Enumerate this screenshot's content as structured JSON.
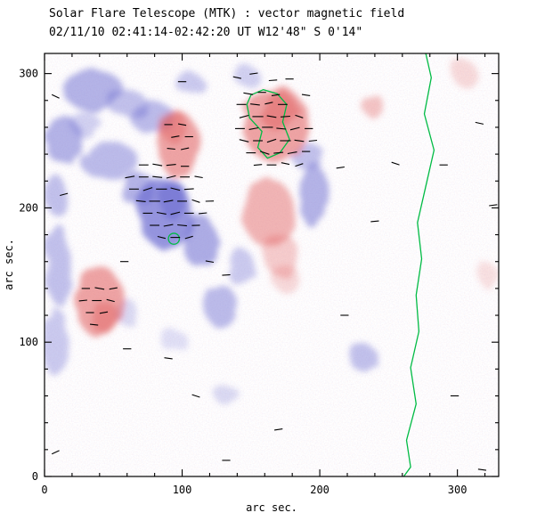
{
  "chart_data": {
    "type": "heatmap",
    "title": "Solar Flare Telescope (MTK) : vector magnetic field",
    "subtitle": "02/11/10  02:41:14-02:42:20 UT   W12'48\"  S 0'14\"",
    "xlabel": "arc sec.",
    "ylabel": "arc sec.",
    "xlim": [
      0,
      330
    ],
    "ylim": [
      0,
      315
    ],
    "xticks": [
      0,
      100,
      200,
      300
    ],
    "yticks": [
      0,
      100,
      200,
      300
    ],
    "minor_tick_step": 20,
    "grid": false,
    "legend": false,
    "colors": {
      "positive": "#e05a5a",
      "negative": "#6a6ad0",
      "contour": "#00bb44",
      "vector": "#000000",
      "frame": "#000000",
      "background": "#ffffff"
    },
    "blobs": [
      {
        "x": 35,
        "y": 288,
        "rx": 22,
        "ry": 15,
        "pol": "-",
        "a": 0.5
      },
      {
        "x": 60,
        "y": 278,
        "rx": 14,
        "ry": 10,
        "pol": "-",
        "a": 0.4
      },
      {
        "x": 78,
        "y": 268,
        "rx": 16,
        "ry": 12,
        "pol": "-",
        "a": 0.45
      },
      {
        "x": 14,
        "y": 250,
        "rx": 13,
        "ry": 18,
        "pol": "-",
        "a": 0.5
      },
      {
        "x": 47,
        "y": 235,
        "rx": 22,
        "ry": 13,
        "pol": "-",
        "a": 0.45
      },
      {
        "x": 30,
        "y": 262,
        "rx": 10,
        "ry": 10,
        "pol": "-",
        "a": 0.3
      },
      {
        "x": 88,
        "y": 196,
        "rx": 20,
        "ry": 26,
        "pol": "-",
        "a": 0.7
      },
      {
        "x": 93,
        "y": 205,
        "rx": 10,
        "ry": 14,
        "pol": "-",
        "a": 0.55
      },
      {
        "x": 68,
        "y": 214,
        "rx": 14,
        "ry": 12,
        "pol": "-",
        "a": 0.5
      },
      {
        "x": 113,
        "y": 175,
        "rx": 12,
        "ry": 20,
        "pol": "-",
        "a": 0.55
      },
      {
        "x": 10,
        "y": 158,
        "rx": 9,
        "ry": 30,
        "pol": "-",
        "a": 0.4
      },
      {
        "x": 8,
        "y": 100,
        "rx": 8,
        "ry": 26,
        "pol": "-",
        "a": 0.35
      },
      {
        "x": 8,
        "y": 210,
        "rx": 9,
        "ry": 14,
        "pol": "-",
        "a": 0.4
      },
      {
        "x": 128,
        "y": 127,
        "rx": 13,
        "ry": 15,
        "pol": "-",
        "a": 0.45
      },
      {
        "x": 143,
        "y": 155,
        "rx": 10,
        "ry": 14,
        "pol": "-",
        "a": 0.35
      },
      {
        "x": 196,
        "y": 208,
        "rx": 10,
        "ry": 24,
        "pol": "-",
        "a": 0.5
      },
      {
        "x": 192,
        "y": 238,
        "rx": 12,
        "ry": 10,
        "pol": "-",
        "a": 0.4
      },
      {
        "x": 231,
        "y": 89,
        "rx": 11,
        "ry": 9,
        "pol": "-",
        "a": 0.4
      },
      {
        "x": 106,
        "y": 292,
        "rx": 10,
        "ry": 8,
        "pol": "-",
        "a": 0.35
      },
      {
        "x": 148,
        "y": 297,
        "rx": 9,
        "ry": 7,
        "pol": "-",
        "a": 0.3
      },
      {
        "x": 132,
        "y": 61,
        "rx": 9,
        "ry": 7,
        "pol": "-",
        "a": 0.25
      },
      {
        "x": 60,
        "y": 122,
        "rx": 8,
        "ry": 10,
        "pol": "-",
        "a": 0.25
      },
      {
        "x": 95,
        "y": 100,
        "rx": 10,
        "ry": 8,
        "pol": "-",
        "a": 0.2
      },
      {
        "x": 97,
        "y": 247,
        "rx": 15,
        "ry": 25,
        "pol": "+",
        "a": 0.55
      },
      {
        "x": 93,
        "y": 262,
        "rx": 10,
        "ry": 12,
        "pol": "+",
        "a": 0.4
      },
      {
        "x": 168,
        "y": 262,
        "rx": 24,
        "ry": 28,
        "pol": "+",
        "a": 0.55
      },
      {
        "x": 170,
        "y": 272,
        "rx": 14,
        "ry": 14,
        "pol": "+",
        "a": 0.45
      },
      {
        "x": 163,
        "y": 196,
        "rx": 18,
        "ry": 26,
        "pol": "+",
        "a": 0.45
      },
      {
        "x": 172,
        "y": 165,
        "rx": 12,
        "ry": 16,
        "pol": "+",
        "a": 0.3
      },
      {
        "x": 40,
        "y": 130,
        "rx": 18,
        "ry": 26,
        "pol": "+",
        "a": 0.55
      },
      {
        "x": 44,
        "y": 118,
        "rx": 10,
        "ry": 12,
        "pol": "+",
        "a": 0.4
      },
      {
        "x": 238,
        "y": 277,
        "rx": 8,
        "ry": 8,
        "pol": "+",
        "a": 0.35
      },
      {
        "x": 305,
        "y": 300,
        "rx": 9,
        "ry": 10,
        "pol": "+",
        "a": 0.22
      },
      {
        "x": 175,
        "y": 148,
        "rx": 10,
        "ry": 10,
        "pol": "+",
        "a": 0.22
      },
      {
        "x": 322,
        "y": 150,
        "rx": 7,
        "ry": 9,
        "pol": "+",
        "a": 0.18
      }
    ],
    "vectors": [
      [
        148,
        285,
        -10,
        7
      ],
      [
        158,
        286,
        0,
        6
      ],
      [
        168,
        284,
        8,
        6
      ],
      [
        143,
        277,
        0,
        7
      ],
      [
        153,
        277,
        -6,
        7
      ],
      [
        163,
        278,
        12,
        6
      ],
      [
        173,
        277,
        0,
        7
      ],
      [
        145,
        268,
        15,
        7
      ],
      [
        155,
        268,
        0,
        8
      ],
      [
        165,
        268,
        -10,
        7
      ],
      [
        175,
        268,
        4,
        7
      ],
      [
        185,
        268,
        -18,
        6
      ],
      [
        142,
        259,
        0,
        7
      ],
      [
        152,
        259,
        10,
        7
      ],
      [
        162,
        260,
        0,
        8
      ],
      [
        172,
        259,
        -6,
        7
      ],
      [
        182,
        259,
        14,
        7
      ],
      [
        192,
        259,
        0,
        6
      ],
      [
        145,
        250,
        -14,
        7
      ],
      [
        155,
        250,
        0,
        7
      ],
      [
        165,
        250,
        18,
        7
      ],
      [
        175,
        250,
        0,
        8
      ],
      [
        185,
        250,
        -8,
        7
      ],
      [
        195,
        250,
        6,
        6
      ],
      [
        150,
        241,
        0,
        7
      ],
      [
        160,
        241,
        -18,
        7
      ],
      [
        170,
        241,
        5,
        7
      ],
      [
        180,
        241,
        10,
        7
      ],
      [
        190,
        242,
        0,
        6
      ],
      [
        155,
        232,
        6,
        6
      ],
      [
        165,
        232,
        0,
        7
      ],
      [
        175,
        233,
        -12,
        6
      ],
      [
        185,
        232,
        18,
        6
      ],
      [
        72,
        232,
        0,
        7
      ],
      [
        82,
        232,
        -10,
        7
      ],
      [
        92,
        232,
        6,
        7
      ],
      [
        102,
        231,
        0,
        6
      ],
      [
        62,
        223,
        10,
        7
      ],
      [
        72,
        223,
        0,
        7
      ],
      [
        82,
        223,
        -6,
        7
      ],
      [
        92,
        223,
        14,
        7
      ],
      [
        102,
        223,
        0,
        7
      ],
      [
        112,
        223,
        -10,
        6
      ],
      [
        65,
        214,
        0,
        7
      ],
      [
        75,
        214,
        18,
        7
      ],
      [
        85,
        214,
        0,
        8
      ],
      [
        95,
        214,
        -14,
        7
      ],
      [
        105,
        214,
        4,
        7
      ],
      [
        70,
        205,
        -6,
        7
      ],
      [
        80,
        205,
        0,
        8
      ],
      [
        90,
        205,
        10,
        7
      ],
      [
        100,
        205,
        0,
        7
      ],
      [
        110,
        205,
        -18,
        6
      ],
      [
        120,
        205,
        2,
        6
      ],
      [
        75,
        196,
        0,
        7
      ],
      [
        85,
        196,
        -10,
        7
      ],
      [
        95,
        196,
        14,
        7
      ],
      [
        105,
        196,
        0,
        7
      ],
      [
        115,
        196,
        6,
        6
      ],
      [
        80,
        187,
        0,
        7
      ],
      [
        90,
        187,
        10,
        7
      ],
      [
        100,
        187,
        -6,
        7
      ],
      [
        110,
        187,
        2,
        6
      ],
      [
        85,
        178,
        -14,
        6
      ],
      [
        95,
        178,
        0,
        7
      ],
      [
        105,
        178,
        16,
        6
      ],
      [
        90,
        262,
        0,
        6
      ],
      [
        100,
        262,
        -10,
        6
      ],
      [
        95,
        253,
        10,
        6
      ],
      [
        105,
        253,
        0,
        6
      ],
      [
        92,
        244,
        -6,
        6
      ],
      [
        102,
        244,
        12,
        6
      ],
      [
        30,
        140,
        0,
        6
      ],
      [
        40,
        140,
        -10,
        7
      ],
      [
        50,
        140,
        10,
        6
      ],
      [
        28,
        131,
        6,
        6
      ],
      [
        38,
        131,
        0,
        7
      ],
      [
        48,
        131,
        -14,
        6
      ],
      [
        33,
        122,
        0,
        6
      ],
      [
        43,
        122,
        10,
        6
      ],
      [
        36,
        113,
        -6,
        6
      ],
      [
        100,
        294,
        0,
        6
      ],
      [
        140,
        297,
        -12,
        6
      ],
      [
        152,
        300,
        8,
        6
      ],
      [
        178,
        296,
        0,
        6
      ],
      [
        190,
        284,
        -8,
        6
      ],
      [
        166,
        295,
        4,
        6
      ],
      [
        8,
        283,
        -25,
        6
      ],
      [
        14,
        210,
        15,
        6
      ],
      [
        58,
        160,
        0,
        6
      ],
      [
        120,
        160,
        -10,
        6
      ],
      [
        132,
        150,
        4,
        6
      ],
      [
        215,
        230,
        8,
        6
      ],
      [
        255,
        233,
        -18,
        6
      ],
      [
        290,
        232,
        0,
        6
      ],
      [
        316,
        263,
        -12,
        6
      ],
      [
        326,
        202,
        8,
        6
      ],
      [
        218,
        120,
        0,
        6
      ],
      [
        110,
        60,
        -18,
        6
      ],
      [
        170,
        35,
        8,
        6
      ],
      [
        132,
        12,
        0,
        6
      ],
      [
        8,
        18,
        25,
        6
      ],
      [
        298,
        60,
        0,
        6
      ],
      [
        318,
        5,
        -8,
        6
      ],
      [
        240,
        190,
        5,
        6
      ],
      [
        60,
        95,
        0,
        6
      ],
      [
        90,
        88,
        -8,
        6
      ]
    ],
    "contours": {
      "limb": [
        [
          277,
          315
        ],
        [
          281,
          297
        ],
        [
          276,
          270
        ],
        [
          283,
          243
        ],
        [
          277,
          216
        ],
        [
          271,
          189
        ],
        [
          274,
          162
        ],
        [
          270,
          135
        ],
        [
          272,
          108
        ],
        [
          266,
          81
        ],
        [
          270,
          54
        ],
        [
          263,
          27
        ],
        [
          266,
          7
        ],
        [
          261,
          0
        ]
      ],
      "region_loop": [
        [
          150,
          284
        ],
        [
          159,
          288
        ],
        [
          169,
          285
        ],
        [
          176,
          277
        ],
        [
          173,
          264
        ],
        [
          178,
          251
        ],
        [
          171,
          241
        ],
        [
          162,
          237
        ],
        [
          155,
          245
        ],
        [
          158,
          257
        ],
        [
          149,
          267
        ],
        [
          147,
          277
        ],
        [
          150,
          284
        ]
      ],
      "small_circle": {
        "x": 94,
        "y": 177,
        "r": 4
      }
    }
  }
}
